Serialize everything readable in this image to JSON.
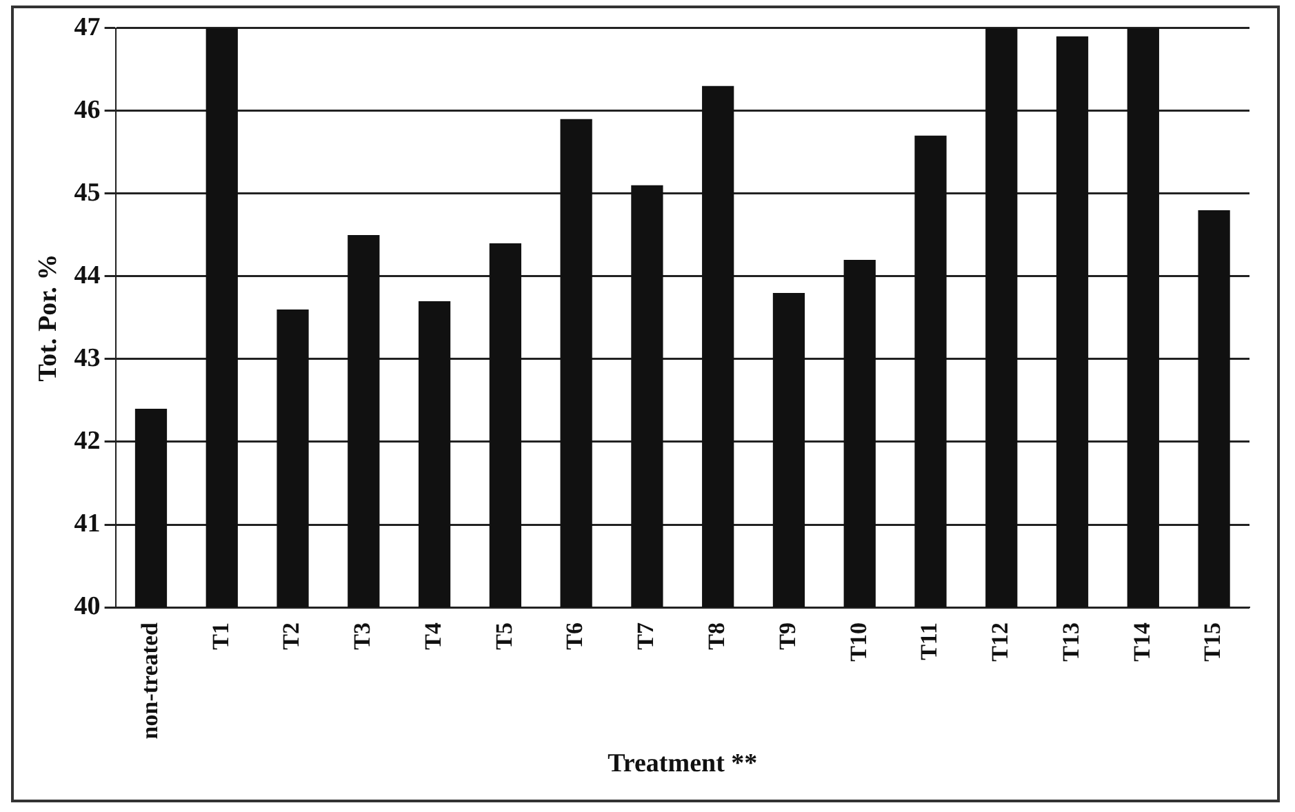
{
  "chart_data": {
    "type": "bar",
    "xlabel": "Treatment **",
    "ylabel": "Tot. Por. %",
    "categories": [
      "non-treated",
      "T1",
      "T2",
      "T3",
      "T4",
      "T5",
      "T6",
      "T7",
      "T8",
      "T9",
      "T10",
      "T11",
      "T12",
      "T13",
      "T14",
      "T15"
    ],
    "values": [
      42.4,
      47.0,
      43.6,
      44.5,
      43.7,
      44.4,
      45.9,
      45.1,
      46.3,
      43.8,
      44.2,
      45.7,
      47.0,
      46.9,
      47.0,
      44.8
    ],
    "color": "#111111",
    "ylim": [
      40,
      47
    ],
    "yticks": [
      40,
      41,
      42,
      43,
      44,
      45,
      46,
      47
    ],
    "grid": "y"
  }
}
